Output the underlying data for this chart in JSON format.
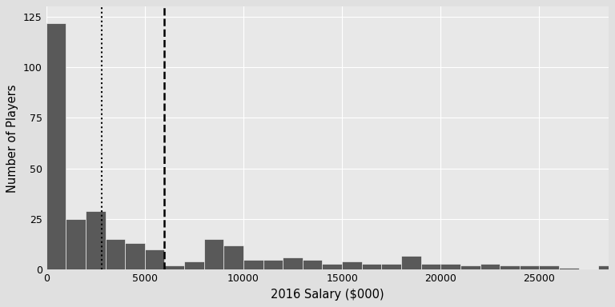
{
  "bar_heights": [
    122,
    25,
    29,
    15,
    13,
    10,
    2,
    4,
    15,
    12,
    5,
    5,
    6,
    5,
    3,
    4,
    3,
    3,
    7,
    3,
    3,
    2,
    3,
    2,
    2,
    2,
    1,
    0,
    2
  ],
  "bin_width": 1000,
  "bin_start": 0,
  "xlim": [
    0,
    28500
  ],
  "ylim": [
    0,
    130
  ],
  "yticks": [
    0,
    25,
    50,
    75,
    100,
    125
  ],
  "xticks": [
    0,
    5000,
    10000,
    15000,
    20000,
    25000
  ],
  "median_x": 2800,
  "mean_x": 6000,
  "bar_color": "#595959",
  "background_color": "#e8e8e8",
  "grid_color": "#ffffff",
  "xlabel": "2016 Salary ($000)",
  "ylabel": "Number of Players",
  "xlabel_fontsize": 10.5,
  "ylabel_fontsize": 10.5,
  "tick_fontsize": 9,
  "fig_width": 7.68,
  "fig_height": 3.84,
  "dpi": 100
}
